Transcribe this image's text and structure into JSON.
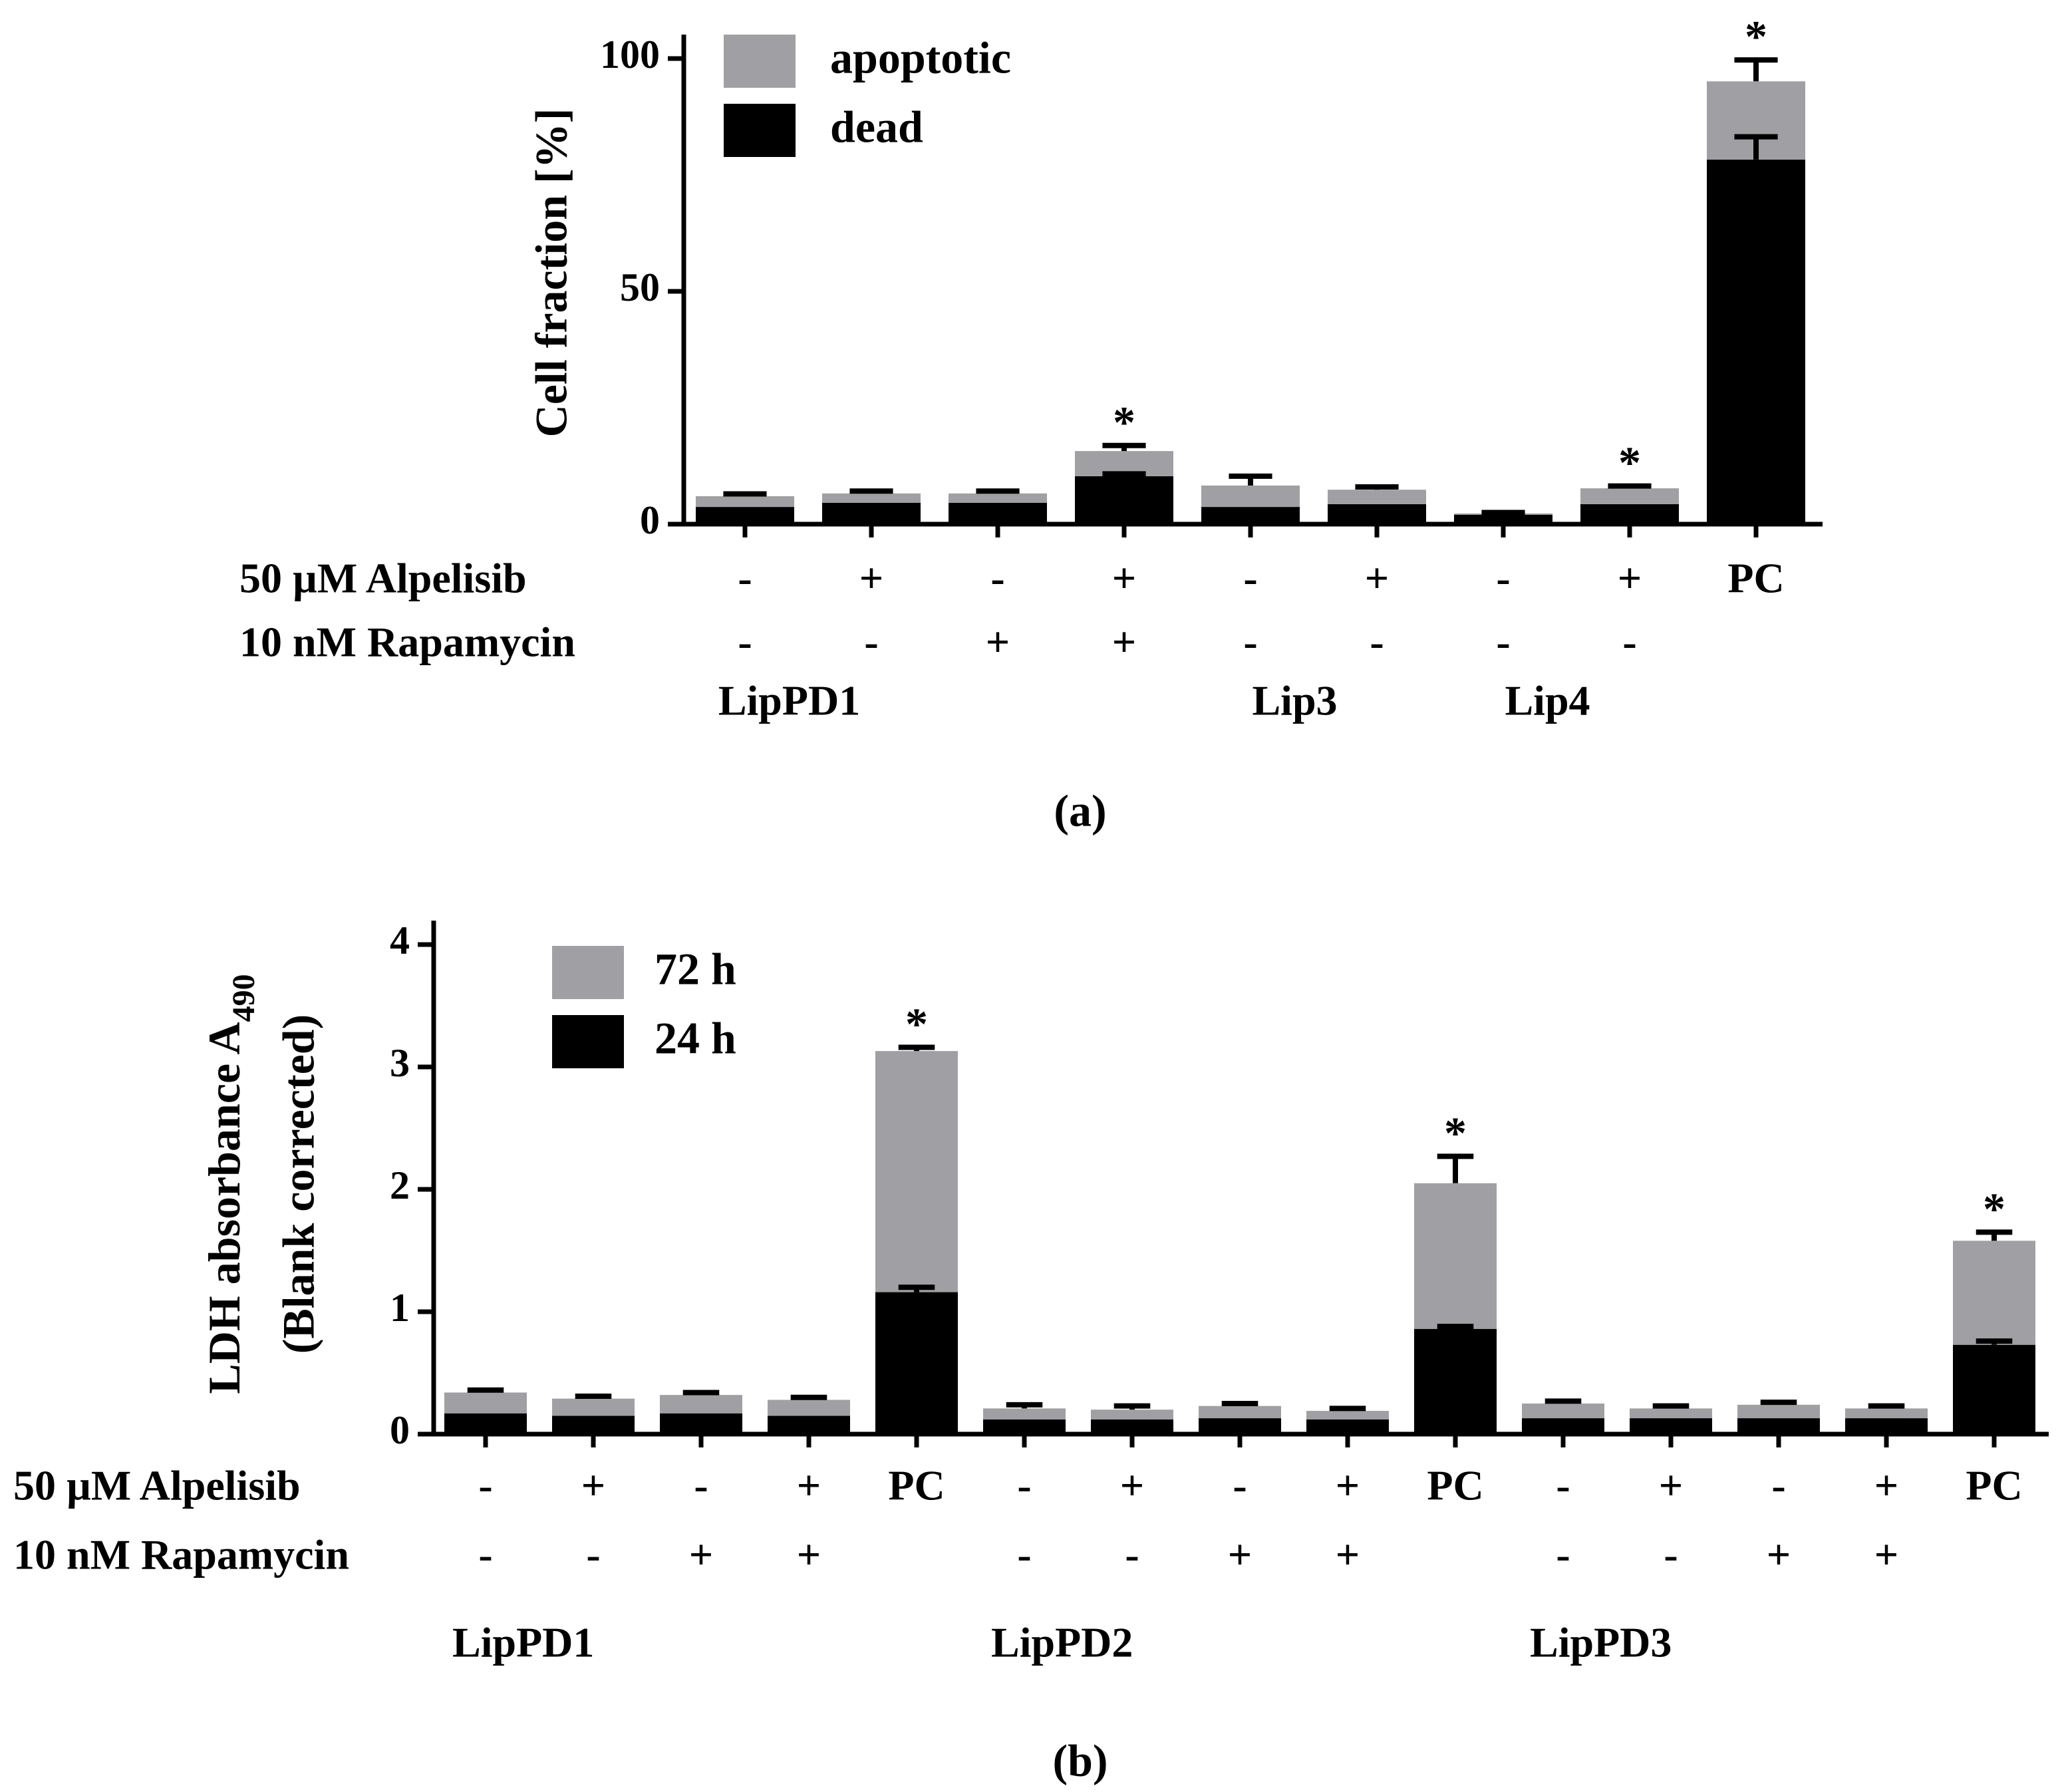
{
  "chart_data": [
    {
      "type": "bar",
      "stacked": true,
      "y_label": "Cell fraction [%]",
      "ylim": [
        0,
        100
      ],
      "yticks": [
        0,
        50,
        100
      ],
      "series": [
        {
          "name": "dead",
          "color": "#000000",
          "values": [
            3.7,
            4.6,
            4.6,
            10.3,
            3.7,
            4.3,
            2.0,
            4.3,
            78.3
          ],
          "errors": [
            null,
            null,
            null,
            0.5,
            null,
            null,
            null,
            null,
            4.9
          ]
        },
        {
          "name": "apoptotic",
          "color": "#a0a0a4",
          "values": [
            2.3,
            2.0,
            2.0,
            5.4,
            4.6,
            3.1,
            0.3,
            3.4,
            16.8
          ],
          "errors": [
            0.5,
            0.5,
            0.5,
            1.2,
            2.0,
            0.6,
            0.2,
            0.5,
            4.6
          ]
        }
      ],
      "rows": [
        {
          "label": "50 µM Alpelisib",
          "values": [
            "-",
            "+",
            "-",
            "+",
            "-",
            "+",
            "-",
            "+",
            "PC"
          ]
        },
        {
          "label": "10 nM Rapamycin",
          "values": [
            "-",
            "-",
            "+",
            "+",
            "-",
            "-",
            "-",
            "-",
            null
          ]
        }
      ],
      "groups": [
        "LipPD1",
        null,
        null,
        null,
        "Lip3",
        null,
        "Lip4",
        null,
        null
      ],
      "annotations": [
        null,
        null,
        null,
        "*",
        null,
        null,
        null,
        "*",
        "*"
      ],
      "caption": "(a)"
    },
    {
      "type": "bar",
      "stacked": true,
      "y_label": "LDH absorbance A",
      "y_label_subscript": "490",
      "y_label_line2": "(Blank corrected)",
      "ylim": [
        0,
        4
      ],
      "yticks": [
        0,
        1,
        2,
        3,
        4
      ],
      "series": [
        {
          "name": "24 h",
          "color": "#000000",
          "values": [
            0.17,
            0.15,
            0.17,
            0.15,
            1.16,
            0.12,
            0.12,
            0.13,
            0.12,
            0.86,
            0.13,
            0.13,
            0.13,
            0.13,
            0.73
          ],
          "errors": [
            null,
            null,
            null,
            null,
            0.04,
            null,
            null,
            null,
            null,
            0.02,
            null,
            null,
            null,
            null,
            0.03
          ]
        },
        {
          "name": "72 h",
          "color": "#a0a0a4",
          "values": [
            0.17,
            0.14,
            0.15,
            0.13,
            1.97,
            0.09,
            0.08,
            0.1,
            0.07,
            1.19,
            0.12,
            0.08,
            0.11,
            0.08,
            0.85
          ],
          "errors": [
            0.02,
            0.02,
            0.02,
            0.02,
            0.03,
            0.03,
            0.03,
            0.02,
            0.02,
            0.22,
            0.02,
            0.02,
            0.02,
            0.02,
            0.07
          ]
        }
      ],
      "rows": [
        {
          "label": "50 µM Alpelisib",
          "values": [
            "-",
            "+",
            "-",
            "+",
            "PC",
            "-",
            "+",
            "-",
            "+",
            "PC",
            "-",
            "+",
            "-",
            "+",
            "PC"
          ]
        },
        {
          "label": "10 nM Rapamycin",
          "values": [
            "-",
            "-",
            "+",
            "+",
            null,
            "-",
            "-",
            "+",
            "+",
            null,
            "-",
            "-",
            "+",
            "+",
            null
          ]
        }
      ],
      "groups": [
        "LipPD1",
        null,
        null,
        null,
        null,
        "LipPD2",
        null,
        null,
        null,
        null,
        "LipPD3",
        null,
        null,
        null,
        null
      ],
      "annotations": [
        null,
        null,
        null,
        null,
        "*",
        null,
        null,
        null,
        null,
        "*",
        null,
        null,
        null,
        null,
        "*"
      ],
      "caption": "(b)"
    }
  ]
}
